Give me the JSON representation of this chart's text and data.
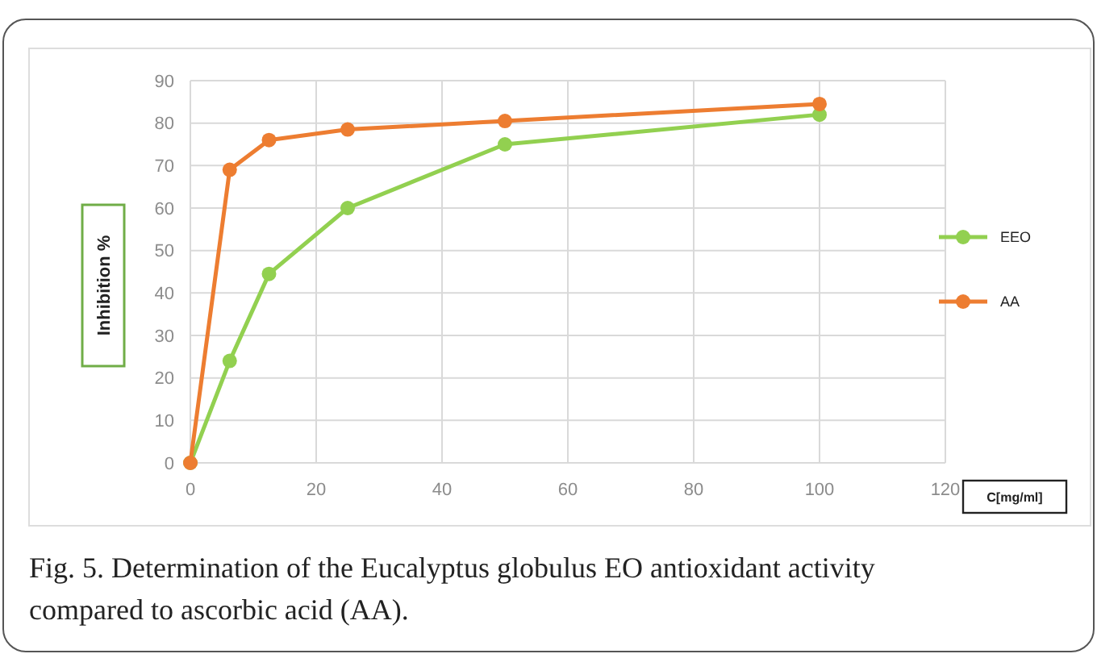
{
  "chart_data": {
    "type": "line",
    "xlabel": "C[mg/ml]",
    "ylabel": "Inhibition %",
    "x": [
      0,
      6.25,
      12.5,
      25,
      50,
      100
    ],
    "series": [
      {
        "name": "EEO",
        "color": "#92d050",
        "values": [
          0,
          24,
          44.5,
          60,
          75,
          82
        ]
      },
      {
        "name": "AA",
        "color": "#ed7d31",
        "values": [
          0,
          69,
          76,
          78.5,
          80.5,
          84.5
        ]
      }
    ],
    "xlim": [
      0,
      120
    ],
    "xticks": [
      0,
      20,
      40,
      60,
      80,
      100,
      120
    ],
    "ylim": [
      0,
      90
    ],
    "yticks": [
      0,
      10,
      20,
      30,
      40,
      50,
      60,
      70,
      80,
      90
    ],
    "grid": true,
    "legend": "right",
    "marker": "circle",
    "line_style": "solid",
    "annotations": [
      "Fig. 5. Determination of the Eucalyptus globulus EO antioxidant activity compared to ascorbic acid (AA)."
    ]
  }
}
